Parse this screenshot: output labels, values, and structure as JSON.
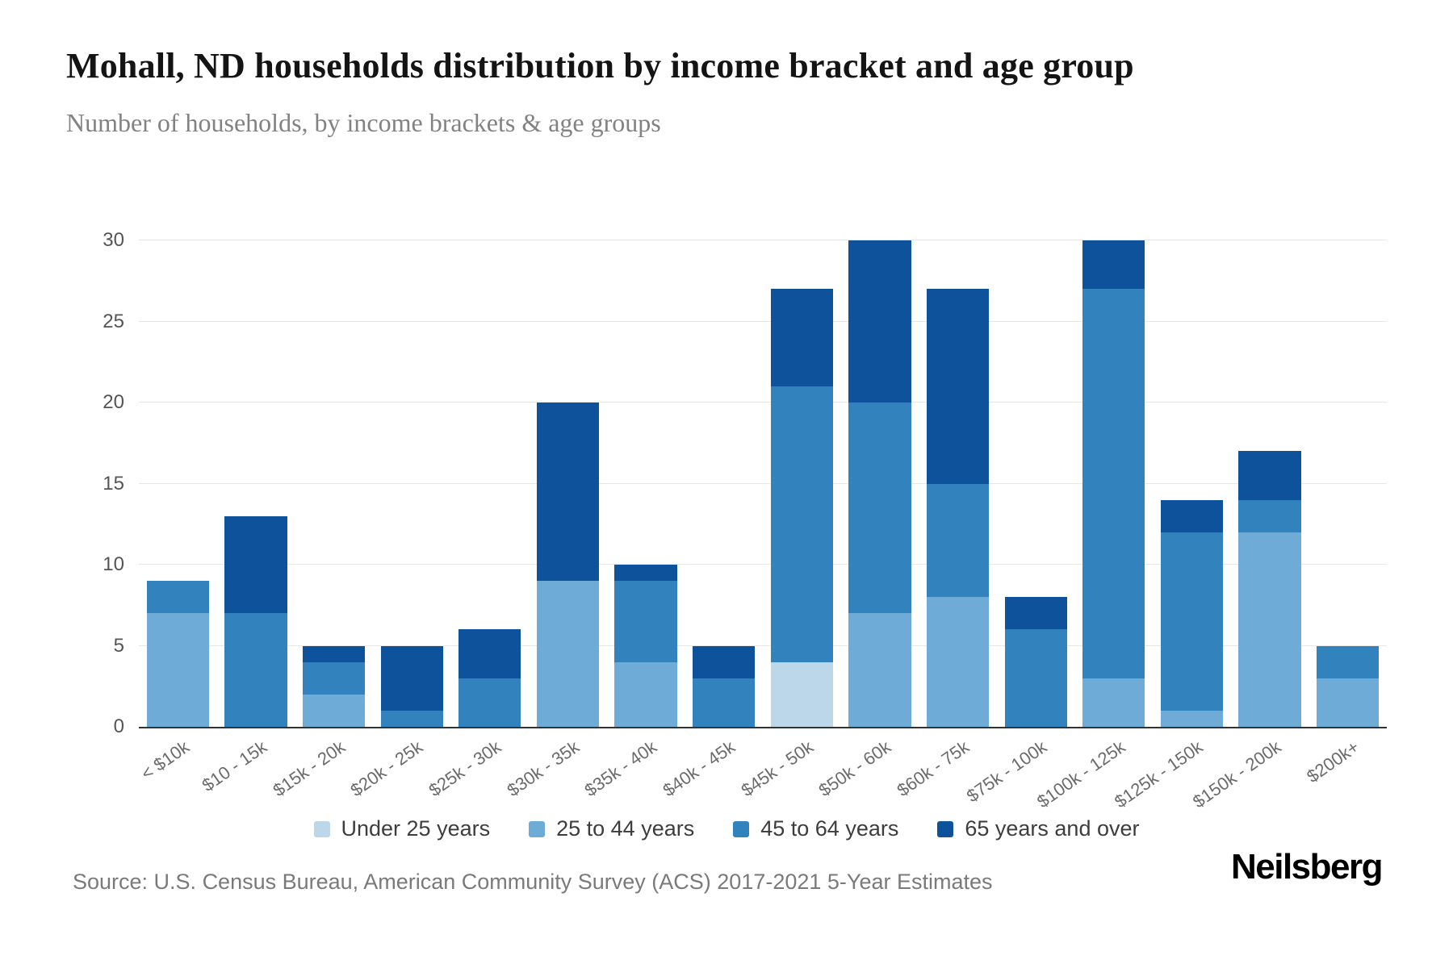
{
  "page": {
    "title": "Mohall, ND households distribution by income bracket and age group",
    "subtitle": "Number of households, by income brackets & age groups",
    "source": "Source: U.S. Census Bureau, American Community Survey (ACS) 2017-2021 5-Year Estimates",
    "brand": "Neilsberg"
  },
  "chart_data": {
    "type": "bar",
    "stacked": true,
    "title": "Mohall, ND households distribution by income bracket and age group",
    "subtitle": "Number of households, by income brackets & age groups",
    "xlabel": "",
    "ylabel": "",
    "ylim": [
      0,
      30
    ],
    "yticks": [
      0,
      5,
      10,
      15,
      20,
      25,
      30
    ],
    "grid": true,
    "legend_position": "bottom",
    "axis_color": "#333333",
    "gridline_color": "#e7e7e7",
    "categories": [
      "< $10k",
      "$10 - 15k",
      "$15k - 20k",
      "$20k - 25k",
      "$25k - 30k",
      "$30k - 35k",
      "$35k - 40k",
      "$40k - 45k",
      "$45k - 50k",
      "$50k - 60k",
      "$60k - 75k",
      "$75k - 100k",
      "$100k - 125k",
      "$125k - 150k",
      "$150k - 200k",
      "$200k+"
    ],
    "series": [
      {
        "name": "Under 25 years",
        "color": "#bdd7ea",
        "values": [
          0,
          0,
          0,
          0,
          0,
          0,
          0,
          0,
          4,
          0,
          0,
          0,
          0,
          0,
          0,
          0
        ]
      },
      {
        "name": "25 to 44 years",
        "color": "#6fabd7",
        "values": [
          7,
          0,
          2,
          0,
          0,
          9,
          4,
          0,
          0,
          7,
          8,
          0,
          3,
          1,
          12,
          3
        ]
      },
      {
        "name": "45 to 64 years",
        "color": "#3182bd",
        "values": [
          2,
          7,
          2,
          1,
          3,
          0,
          5,
          3,
          17,
          13,
          7,
          6,
          24,
          11,
          2,
          2
        ]
      },
      {
        "name": "65 years and over",
        "color": "#0e529c",
        "values": [
          0,
          6,
          1,
          4,
          3,
          11,
          1,
          2,
          6,
          10,
          12,
          2,
          3,
          2,
          3,
          0
        ]
      }
    ],
    "totals": [
      9,
      13,
      5,
      5,
      6,
      20,
      10,
      5,
      27,
      30,
      27,
      8,
      30,
      14,
      17,
      5
    ]
  }
}
